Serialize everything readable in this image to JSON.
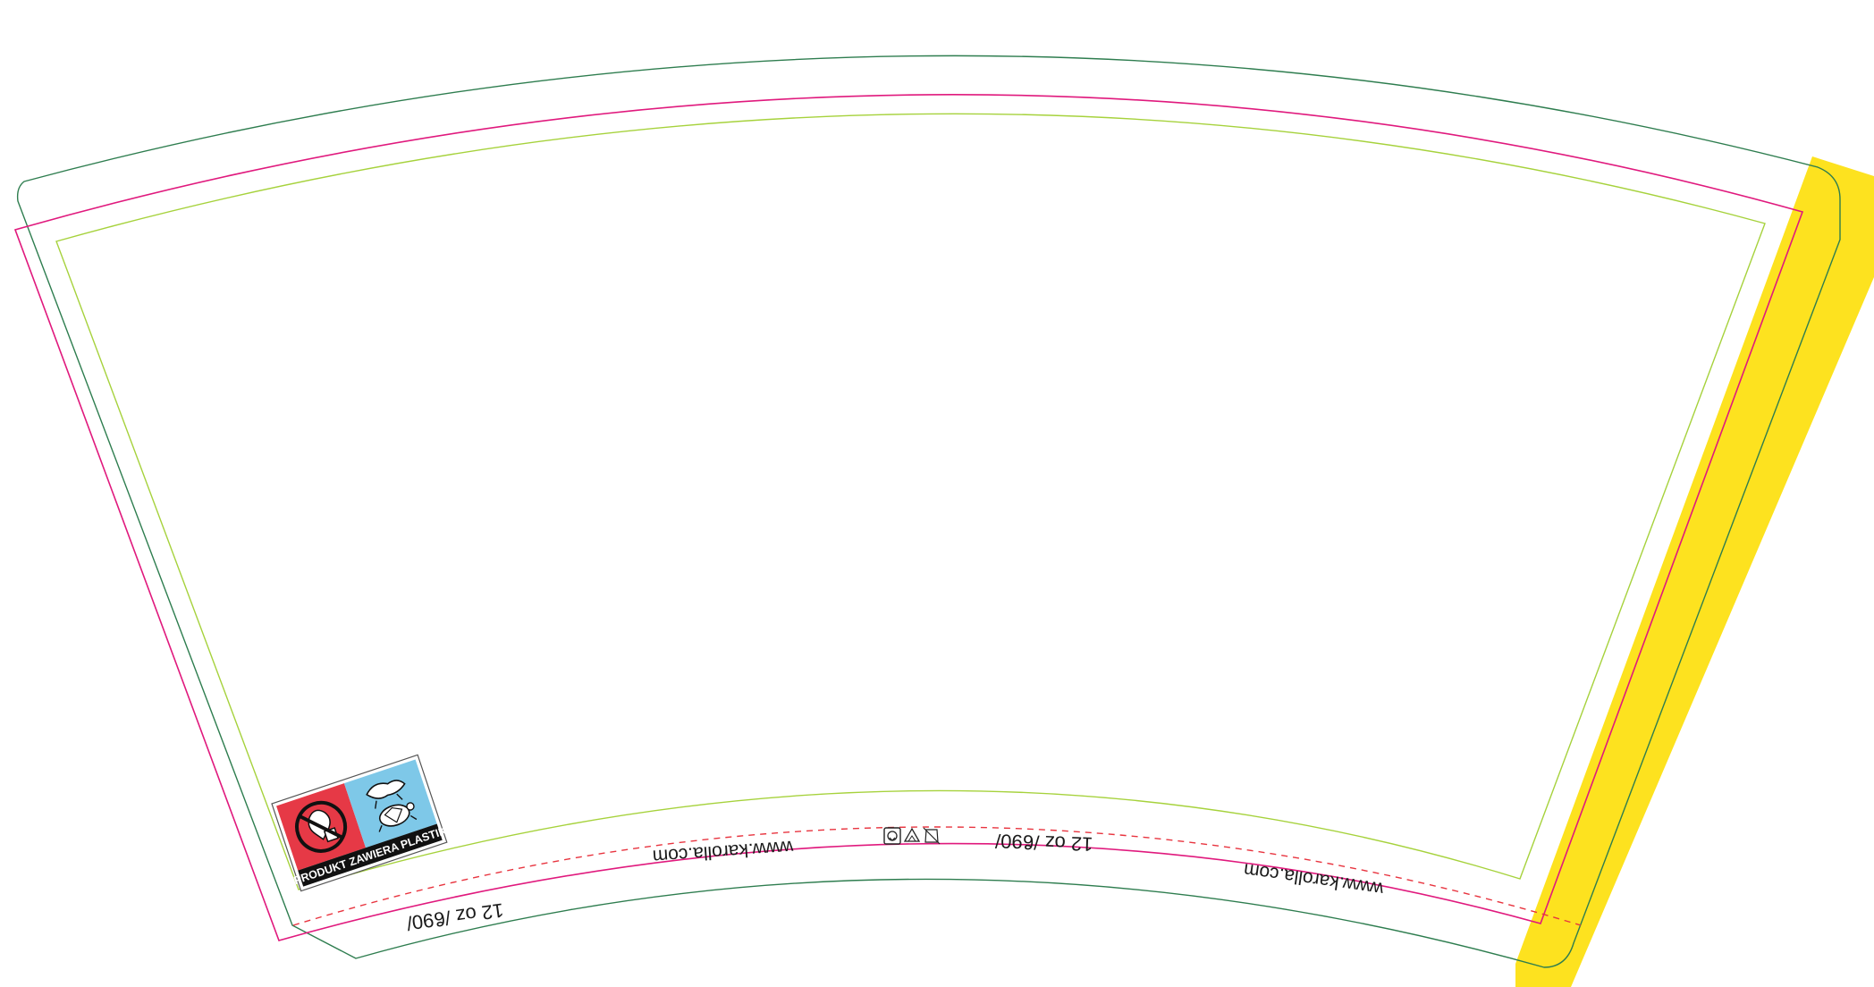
{
  "template": {
    "colors": {
      "die_cut": "#2e7d4f",
      "bleed": "#e0197d",
      "safe_area": "#a6d23c",
      "fold_line": "#e8343f",
      "glue_flap": "#fde21f"
    },
    "bottom_labels": [
      {
        "id": "size-left",
        "text": "12 oz /ϐ90/"
      },
      {
        "id": "url-left",
        "text": "www.karolla.com"
      },
      {
        "id": "size-right",
        "text": "12 oz /ϐ90/"
      },
      {
        "id": "url-right",
        "text": "www.karolla.com"
      }
    ],
    "symbols": [
      "recycle-icon",
      "food-safe-icon",
      "no-dishwasher-icon"
    ],
    "plastic_badge": {
      "text": "PRODUKT ZAWIERA PLASTIK",
      "left_color": "#e63946",
      "right_color": "#7ec8e8",
      "icons": [
        "no-littering-icon",
        "turtle-plastic-icon"
      ]
    }
  }
}
